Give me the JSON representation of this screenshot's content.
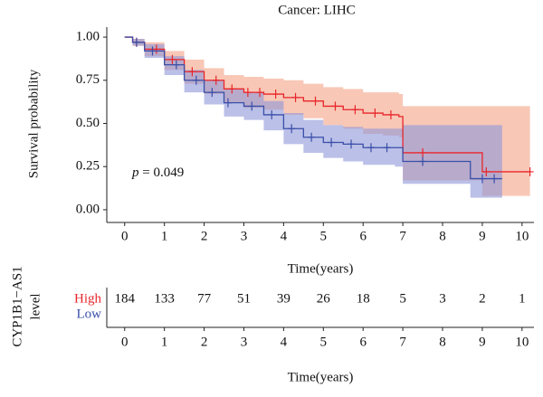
{
  "chart_data": {
    "type": "step",
    "title": "Cancer: LIHC",
    "ylabel": "Survival probability",
    "xlabel": "Time(years)",
    "xlim": [
      -0.45,
      10.3
    ],
    "ylim": [
      -0.058,
      1.058
    ],
    "xticks": [
      0,
      1,
      2,
      3,
      4,
      5,
      6,
      7,
      8,
      9,
      10
    ],
    "yticks": [
      {
        "value": 0,
        "label": "0.00"
      },
      {
        "value": 0.25,
        "label": "0.25"
      },
      {
        "value": 0.5,
        "label": "0.50"
      },
      {
        "value": 0.75,
        "label": "0.75"
      },
      {
        "value": 1,
        "label": "1.00"
      }
    ],
    "annotation": {
      "symbol": "p",
      "text": "= 0.049"
    },
    "series": [
      {
        "name": "High",
        "color": "#e8262a",
        "band_color": "#f4a286",
        "x": [
          0,
          0.2,
          0.5,
          1,
          1.5,
          2,
          2.5,
          3,
          3.5,
          4,
          4.5,
          5,
          5.5,
          6,
          6.5,
          6.9,
          7,
          7.5,
          9,
          9.5,
          10.2
        ],
        "values": [
          1,
          0.97,
          0.93,
          0.87,
          0.8,
          0.75,
          0.7,
          0.68,
          0.67,
          0.65,
          0.63,
          0.6,
          0.58,
          0.56,
          0.55,
          0.54,
          0.33,
          0.33,
          0.22,
          0.22,
          0.22
        ],
        "upper": [
          1,
          0.99,
          0.97,
          0.92,
          0.87,
          0.82,
          0.78,
          0.77,
          0.76,
          0.75,
          0.73,
          0.71,
          0.7,
          0.68,
          0.68,
          0.67,
          0.6,
          0.6,
          0.6,
          0.6,
          0.6
        ],
        "lower": [
          1,
          0.95,
          0.89,
          0.81,
          0.73,
          0.67,
          0.62,
          0.59,
          0.58,
          0.55,
          0.53,
          0.49,
          0.47,
          0.44,
          0.43,
          0.42,
          0.17,
          0.17,
          0.08,
          0.08,
          0.08
        ],
        "censor_x": [
          0.3,
          0.8,
          1.2,
          1.7,
          2.3,
          2.7,
          3.1,
          3.4,
          3.8,
          4.3,
          4.8,
          5.3,
          5.8,
          6.3,
          6.7,
          7.5,
          9.1,
          10.2
        ],
        "censor_y": [
          0.97,
          0.93,
          0.87,
          0.8,
          0.75,
          0.7,
          0.68,
          0.68,
          0.67,
          0.65,
          0.63,
          0.6,
          0.58,
          0.56,
          0.55,
          0.33,
          0.22,
          0.22
        ],
        "at_risk": [
          184,
          133,
          77,
          51,
          39,
          26,
          18,
          5,
          3,
          2,
          1
        ]
      },
      {
        "name": "Low",
        "color": "#3a4fa8",
        "band_color": "#8e96d8",
        "x": [
          0,
          0.2,
          0.5,
          1,
          1.5,
          2,
          2.5,
          3,
          3.5,
          4,
          4.5,
          5,
          5.5,
          6,
          6.5,
          6.8,
          7,
          7.5,
          8,
          8.7,
          9.5
        ],
        "values": [
          1,
          0.97,
          0.92,
          0.84,
          0.75,
          0.68,
          0.62,
          0.6,
          0.55,
          0.47,
          0.42,
          0.39,
          0.38,
          0.36,
          0.36,
          0.36,
          0.28,
          0.28,
          0.28,
          0.18,
          0.18
        ],
        "upper": [
          1,
          0.99,
          0.96,
          0.89,
          0.81,
          0.75,
          0.7,
          0.68,
          0.63,
          0.56,
          0.52,
          0.49,
          0.48,
          0.47,
          0.47,
          0.47,
          0.49,
          0.49,
          0.49,
          0.49,
          0.49
        ],
        "lower": [
          1,
          0.95,
          0.88,
          0.78,
          0.68,
          0.61,
          0.54,
          0.52,
          0.46,
          0.38,
          0.33,
          0.3,
          0.28,
          0.26,
          0.26,
          0.25,
          0.15,
          0.15,
          0.15,
          0.07,
          0.07
        ],
        "censor_x": [
          0.3,
          0.7,
          1.3,
          1.8,
          2.2,
          2.6,
          3.2,
          3.7,
          4.2,
          4.7,
          5.2,
          5.7,
          6.2,
          6.6,
          7.5,
          9.0,
          9.3
        ],
        "censor_y": [
          0.97,
          0.92,
          0.84,
          0.75,
          0.68,
          0.62,
          0.6,
          0.55,
          0.47,
          0.42,
          0.39,
          0.38,
          0.36,
          0.36,
          0.28,
          0.18,
          0.18
        ]
      }
    ],
    "risk_table": {
      "ylabel": [
        "CYP1B1−AS1",
        "level"
      ]
    }
  }
}
